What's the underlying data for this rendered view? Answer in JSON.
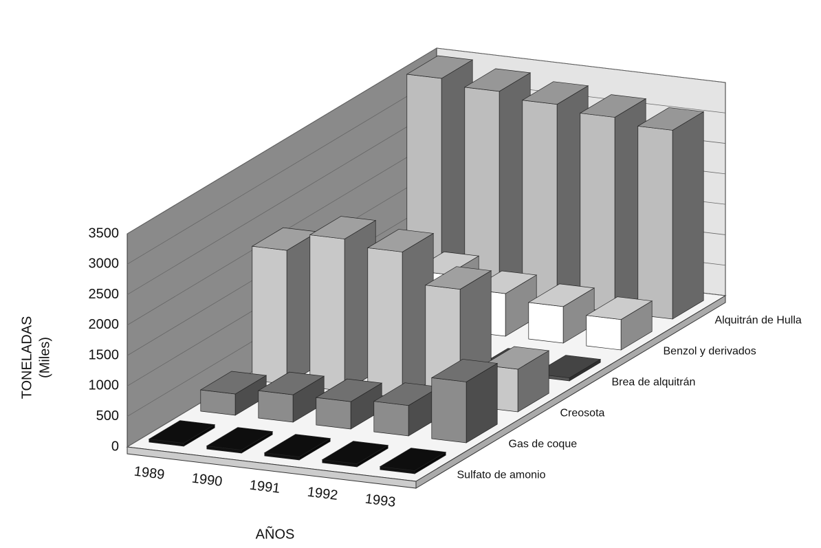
{
  "chart_data": {
    "type": "bar3d",
    "y_label": "TONELADAS",
    "y_sublabel": "(Miles)",
    "x_label": "AÑOS",
    "categories": [
      "1989",
      "1990",
      "1991",
      "1992",
      "1993"
    ],
    "series": [
      {
        "name": "Sulfato de amonio",
        "color": "#111111",
        "values": [
          50,
          50,
          50,
          50,
          50
        ]
      },
      {
        "name": "Gas de coque",
        "color": "#8c8c8c",
        "values": [
          350,
          450,
          450,
          500,
          1000
        ]
      },
      {
        "name": "Creosota",
        "color": "#c8c8c8",
        "values": [
          2200,
          2500,
          2400,
          1900,
          700
        ]
      },
      {
        "name": "Brea de alquitrán",
        "color": "#555555",
        "values": [
          400,
          450,
          450,
          50,
          50
        ]
      },
      {
        "name": "Benzol y derivados",
        "color": "#ffffff",
        "values": [
          700,
          900,
          700,
          600,
          500
        ]
      },
      {
        "name": "Alquitrán de Hulla",
        "color": "#bdbdbd",
        "values": [
          3500,
          3400,
          3300,
          3200,
          3100
        ]
      }
    ],
    "ylim": [
      0,
      3500
    ],
    "yticks": [
      0,
      500,
      1000,
      1500,
      2000,
      2500,
      3000,
      3500
    ],
    "grid": true
  }
}
